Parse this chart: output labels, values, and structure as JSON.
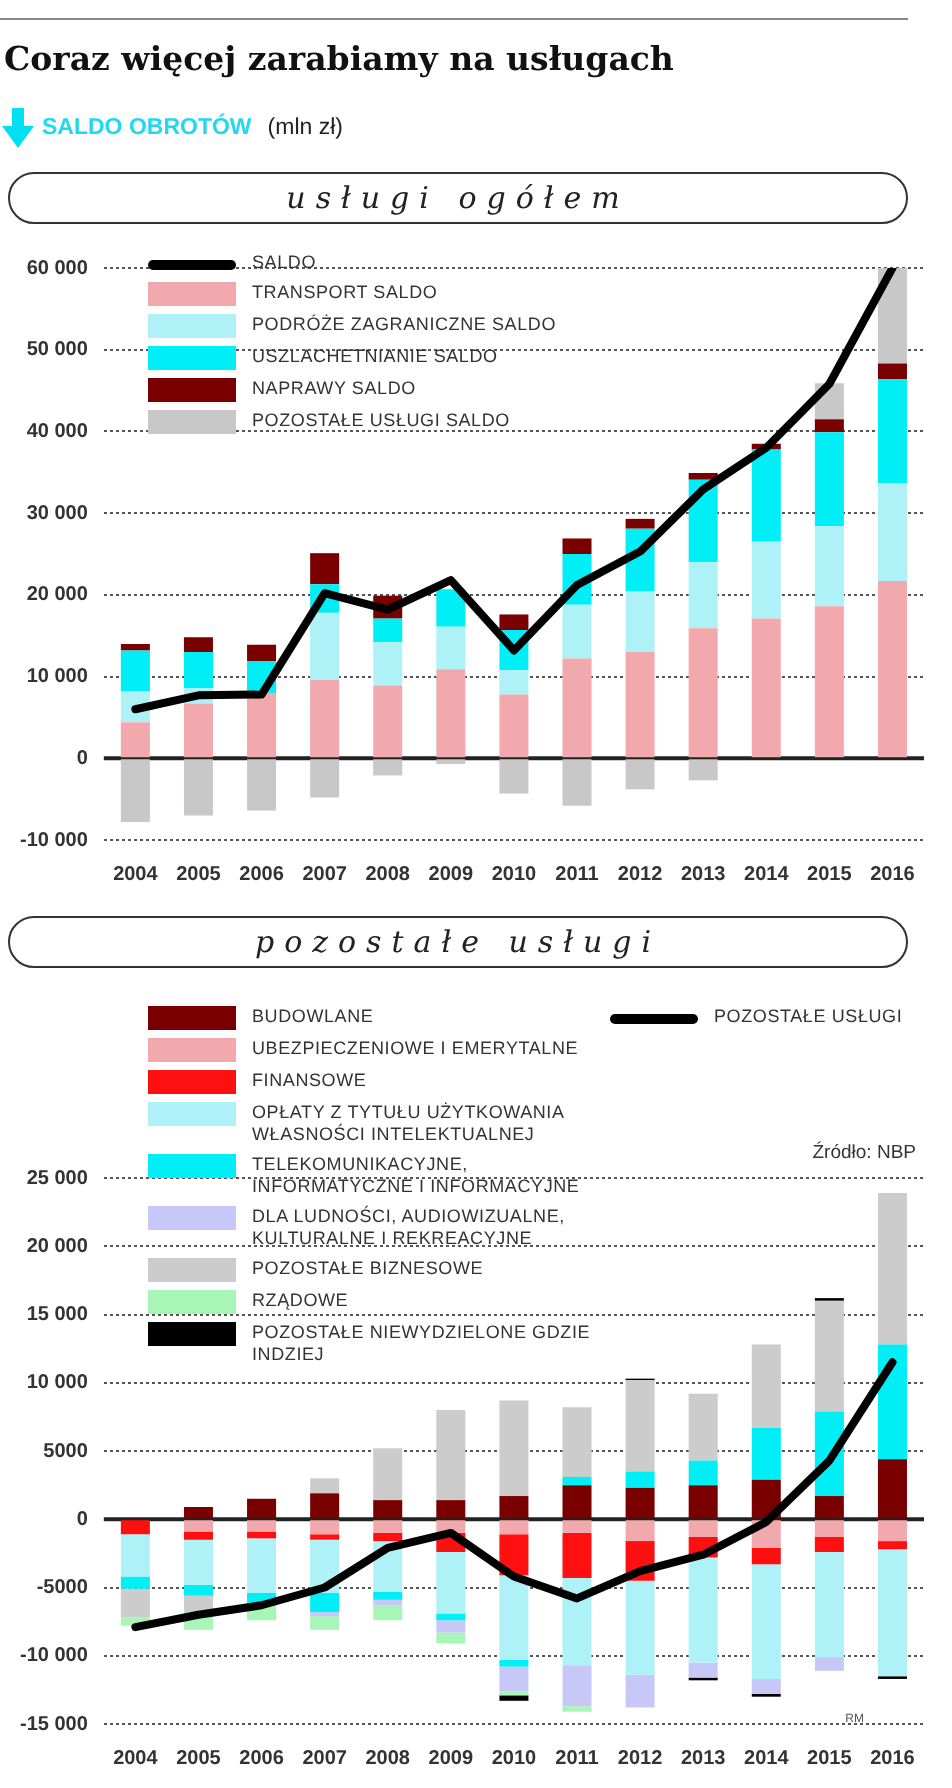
{
  "chart_data": [
    {
      "type": "bar",
      "stacked": true,
      "title": "Coraz więcej zarabiamy na usługach",
      "subtitle": "usługi ogółem",
      "ylabel": "SALDO OBROTÓW",
      "annotations": [
        "(mln zł)"
      ],
      "categories": [
        "2004",
        "2005",
        "2006",
        "2007",
        "2008",
        "2009",
        "2010",
        "2011",
        "2012",
        "2013",
        "2014",
        "2015",
        "2016"
      ],
      "ylim": [
        -10000,
        60000
      ],
      "yticks": [
        {
          "value": -10000,
          "label": "-10 000"
        },
        0,
        {
          "value": 10000,
          "label": "10 000"
        },
        {
          "value": 20000,
          "label": "20 000"
        },
        {
          "value": 30000,
          "label": "30 000"
        },
        {
          "value": 40000,
          "label": "40 000"
        },
        {
          "value": 50000,
          "label": "50 000"
        },
        {
          "value": 60000,
          "label": "60 000"
        }
      ],
      "grid": "y",
      "legend": "top left",
      "marker": "none",
      "series": [
        {
          "name": "SALDO",
          "type": "line",
          "color": "#000000",
          "values": [
            6000,
            7700,
            7800,
            20200,
            18200,
            21800,
            13200,
            21200,
            25300,
            32900,
            38000,
            45800,
            60000
          ]
        },
        {
          "name": "TRANSPORT SALDO",
          "color": "#f2a9ad",
          "values": [
            4400,
            6700,
            8000,
            9600,
            8900,
            10900,
            7800,
            12200,
            13000,
            15900,
            17100,
            18600,
            21700
          ]
        },
        {
          "name": "PODRÓŻE ZAGRANICZNE SALDO",
          "color": "#aef2f8",
          "values": [
            3800,
            1900,
            null,
            8200,
            5300,
            5200,
            3000,
            6600,
            7400,
            8100,
            9400,
            9800,
            12000
          ]
        },
        {
          "name": "USZLACHETNIANIE SALDO",
          "color": "#00eef5",
          "values": [
            5000,
            4400,
            3900,
            3500,
            2900,
            4600,
            4900,
            6200,
            7700,
            10100,
            11300,
            11500,
            12700
          ]
        },
        {
          "name": "NAPRAWY SALDO",
          "color": "#7a0000",
          "values": [
            800,
            1800,
            2000,
            3800,
            2800,
            null,
            1900,
            1900,
            1200,
            800,
            700,
            1600,
            1900
          ]
        },
        {
          "name": "POZOSTAŁE USŁUGI SALDO",
          "color": "#c8c8c8",
          "values": [
            -7800,
            -7000,
            -6400,
            -4800,
            -2100,
            -700,
            -4300,
            -5800,
            -3800,
            -2700,
            null,
            4400,
            11700
          ]
        }
      ]
    },
    {
      "type": "bar",
      "stacked": true,
      "title": "pozostałe usługi",
      "annotations": [
        "Źródło: NBP",
        "RM"
      ],
      "categories": [
        "2004",
        "2005",
        "2006",
        "2007",
        "2008",
        "2009",
        "2010",
        "2011",
        "2012",
        "2013",
        "2014",
        "2015",
        "2016"
      ],
      "ylim": [
        -15000,
        25000
      ],
      "yticks": [
        {
          "value": -15000,
          "label": "-15 000"
        },
        {
          "value": -10000,
          "label": "-10 000"
        },
        -5000,
        0,
        5000,
        {
          "value": 10000,
          "label": "10 000"
        },
        {
          "value": 15000,
          "label": "15 000"
        },
        {
          "value": 20000,
          "label": "20 000"
        },
        {
          "value": 25000,
          "label": "25 000"
        }
      ],
      "grid": "y",
      "legend": "top left",
      "marker": "none",
      "series": [
        {
          "name": "POZOSTAŁE USŁUGI",
          "type": "line",
          "color": "#000000",
          "values": [
            -7900,
            -7000,
            -6300,
            -5000,
            -2100,
            -1000,
            -4200,
            -5800,
            -3800,
            -2600,
            -200,
            4300,
            11500
          ]
        },
        {
          "name": "BUDOWLANE",
          "color": "#7a0000",
          "values": [
            null,
            900,
            1500,
            1900,
            1400,
            1400,
            1700,
            2500,
            2300,
            2500,
            2900,
            1700,
            4400
          ]
        },
        {
          "name": "UBEZPIECZENIOWE I EMERYTALNE",
          "color": "#f2a9ad",
          "values": [
            null,
            -900,
            -900,
            -1100,
            -1000,
            -1000,
            -1100,
            -1000,
            -1600,
            -1300,
            -2100,
            -1300,
            -1600
          ]
        },
        {
          "name": "FINANSOWE",
          "color": "#ff1010",
          "values": [
            -1100,
            -600,
            -500,
            -400,
            -600,
            -1400,
            -3000,
            -3300,
            -2900,
            -1500,
            -1200,
            -1100,
            -600
          ]
        },
        {
          "name": "OPŁATY Z TYTUŁU UŻYTKOWANIA WŁASNOŚCI INTELEKTUALNEJ",
          "color": "#aef2f8",
          "values": [
            -3100,
            -3300,
            -4000,
            -3900,
            -3700,
            -4500,
            -6200,
            -6400,
            -6900,
            -7700,
            -8400,
            -7700,
            -9300
          ]
        },
        {
          "name": "TELEKOMUNIKACYJNE, INFORMATYCZNE I INFORMACYJNE",
          "color": "#00eef5",
          "values": [
            -900,
            -800,
            -900,
            -1400,
            -600,
            -500,
            -500,
            600,
            1200,
            1800,
            3800,
            6200,
            8400
          ]
        },
        {
          "name": "DLA LUDNOŚCI, AUDIOWIZUALNE, KULTURALNE I REKREACYJNE",
          "color": "#c8c8f8",
          "values": [
            null,
            null,
            null,
            -300,
            -400,
            -900,
            -1800,
            -3000,
            -2400,
            -1100,
            -1100,
            -1000,
            null
          ]
        },
        {
          "name": "POZOSTAŁE BIZNESOWE",
          "color": "#cccccc",
          "values": [
            -2100,
            -1200,
            null,
            1100,
            3800,
            6600,
            7000,
            5100,
            6700,
            4900,
            6100,
            8100,
            11100
          ]
        },
        {
          "name": "RZĄDOWE",
          "color": "#a8f5b8",
          "values": [
            -600,
            -1300,
            -1100,
            -1000,
            -1100,
            -800,
            -300,
            -400,
            null,
            null,
            null,
            null,
            null
          ]
        },
        {
          "name": "POZOSTAŁE NIEWYDZIELONE GDZIE INDZIEJ",
          "color": "#000000",
          "values": [
            null,
            null,
            null,
            null,
            null,
            null,
            -400,
            null,
            100,
            -200,
            -200,
            200,
            -200
          ]
        }
      ]
    }
  ]
}
